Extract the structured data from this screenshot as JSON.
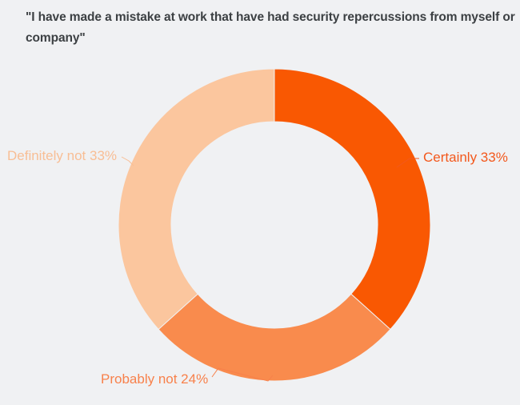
{
  "title": "\"I have made a mistake at work that have had security repercussions from myself or company\"",
  "title_color": "#3C4043",
  "background_color": "#F0F1F3",
  "chart_data": {
    "type": "pie",
    "subtype": "donut",
    "title": "\"I have made a mistake at work that have had security repercussions from myself or company\"",
    "start_angle_deg": 0,
    "direction": "clockwise",
    "donut_hole_ratio": 0.66,
    "legend": "none",
    "label_style": "outside-with-leader-lines",
    "segments": [
      {
        "label": "Certainly",
        "value": 33,
        "unit": "%",
        "display": "Certainly 33%",
        "color": "#F95802",
        "label_color": "#F3581C"
      },
      {
        "label": "Probably not",
        "value": 24,
        "unit": "%",
        "display": "Probably not 24%",
        "color": "#F98B4D",
        "label_color": "#F8814B"
      },
      {
        "label": "Definitely not",
        "value": 33,
        "unit": "%",
        "display": "Definitely not 33%",
        "color": "#FBC69E",
        "label_color": "#F8BE95"
      }
    ]
  }
}
